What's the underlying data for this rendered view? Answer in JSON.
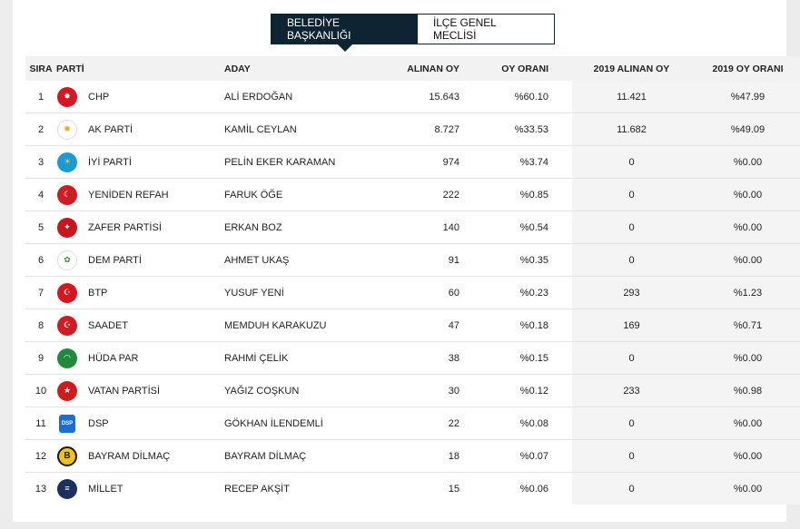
{
  "tabs": [
    {
      "label": "BELEDİYE BAŞKANLIĞI",
      "active": true
    },
    {
      "label": "İLÇE GENEL MECLİSİ",
      "active": false
    }
  ],
  "columns": {
    "sira": "SIRA",
    "parti": "PARTİ",
    "aday": "ADAY",
    "alinan_oy": "ALINAN OY",
    "oy_orani": "OY ORANI",
    "alinan_oy_2019": "2019 ALINAN OY",
    "oy_orani_2019": "2019 OY ORANI"
  },
  "rows": [
    {
      "sira": "1",
      "parti": "CHP",
      "aday": "ALİ ERDOĞAN",
      "oy": "15.643",
      "oran": "%60.10",
      "oy2019": "11.421",
      "oran2019": "%47.99",
      "logo": {
        "icon": "chp-six-arrows-icon",
        "bg": "#d8161f",
        "fg": "#ffffff",
        "glyph": "✸"
      }
    },
    {
      "sira": "2",
      "parti": "AK PARTİ",
      "aday": "KAMİL CEYLAN",
      "oy": "8.727",
      "oran": "%33.53",
      "oy2019": "11.682",
      "oran2019": "%49.09",
      "logo": {
        "icon": "akp-lightbulb-icon",
        "bg": "#ffffff",
        "fg": "#f2a400",
        "glyph": "✺"
      }
    },
    {
      "sira": "3",
      "parti": "İYİ PARTİ",
      "aday": "PELİN EKER KARAMAN",
      "oy": "974",
      "oran": "%3.74",
      "oy2019": "0",
      "oran2019": "%0.00",
      "logo": {
        "icon": "iyi-sun-icon",
        "bg": "#1a9ad6",
        "fg": "#f7d21a",
        "glyph": "☀"
      }
    },
    {
      "sira": "4",
      "parti": "YENİDEN REFAH",
      "aday": "FARUK ÖĞE",
      "oy": "222",
      "oran": "%0.85",
      "oy2019": "0",
      "oran2019": "%0.00",
      "logo": {
        "icon": "refah-crescent-icon",
        "bg": "#d01c24",
        "fg": "#ffffff",
        "glyph": "☾"
      }
    },
    {
      "sira": "5",
      "parti": "ZAFER PARTİSİ",
      "aday": "ERKAN BOZ",
      "oy": "140",
      "oran": "%0.54",
      "oy2019": "0",
      "oran2019": "%0.00",
      "logo": {
        "icon": "zafer-emblem-icon",
        "bg": "#c8161d",
        "fg": "#ffffff",
        "glyph": "✦"
      }
    },
    {
      "sira": "6",
      "parti": "DEM PARTİ",
      "aday": "AHMET UKAŞ",
      "oy": "91",
      "oran": "%0.35",
      "oy2019": "0",
      "oran2019": "%0.00",
      "logo": {
        "icon": "dem-tree-icon",
        "bg": "#ffffff",
        "fg": "#3a8f3a",
        "glyph": "✿"
      }
    },
    {
      "sira": "7",
      "parti": "BTP",
      "aday": "YUSUF YENİ",
      "oy": "60",
      "oran": "%0.23",
      "oy2019": "293",
      "oran2019": "%1.23",
      "logo": {
        "icon": "btp-crescent-icon",
        "bg": "#d8161f",
        "fg": "#ffffff",
        "glyph": "☪"
      }
    },
    {
      "sira": "8",
      "parti": "SAADET",
      "aday": "MEMDUH KARAKUZU",
      "oy": "47",
      "oran": "%0.18",
      "oy2019": "169",
      "oran2019": "%0.71",
      "logo": {
        "icon": "saadet-crescent-icon",
        "bg": "#d01c24",
        "fg": "#ffffff",
        "glyph": "☪"
      }
    },
    {
      "sira": "9",
      "parti": "HÜDA PAR",
      "aday": "RAHMİ ÇELİK",
      "oy": "38",
      "oran": "%0.15",
      "oy2019": "0",
      "oran2019": "%0.00",
      "logo": {
        "icon": "hudapar-emblem-icon",
        "bg": "#1f8a3a",
        "fg": "#ffffff",
        "glyph": "◠"
      }
    },
    {
      "sira": "10",
      "parti": "VATAN PARTİSİ",
      "aday": "YAĞIZ COŞKUN",
      "oy": "30",
      "oran": "%0.12",
      "oy2019": "233",
      "oran2019": "%0.98",
      "logo": {
        "icon": "vatan-star-icon",
        "bg": "#cc1d1d",
        "fg": "#ffffff",
        "glyph": "★"
      }
    },
    {
      "sira": "11",
      "parti": "DSP",
      "aday": "GÖKHAN İLENDEMLİ",
      "oy": "22",
      "oran": "%0.08",
      "oy2019": "0",
      "oran2019": "%0.00",
      "logo": {
        "icon": "dsp-dove-icon",
        "bg": "#1a6fd1",
        "fg": "#ffffff",
        "glyph": "DSP"
      }
    },
    {
      "sira": "12",
      "parti": "BAYRAM DİLMAÇ",
      "aday": "BAYRAM DİLMAÇ",
      "oy": "18",
      "oran": "%0.07",
      "oy2019": "0",
      "oran2019": "%0.00",
      "logo": {
        "icon": "independent-b-icon",
        "bg": "#f2c30f",
        "fg": "#1a1a1a",
        "glyph": "B"
      }
    },
    {
      "sira": "13",
      "parti": "MİLLET",
      "aday": "RECEP AKŞİT",
      "oy": "15",
      "oran": "%0.06",
      "oy2019": "0",
      "oran2019": "%0.00",
      "logo": {
        "icon": "millet-emblem-icon",
        "bg": "#1c2f5e",
        "fg": "#ffffff",
        "glyph": "≡"
      }
    }
  ]
}
